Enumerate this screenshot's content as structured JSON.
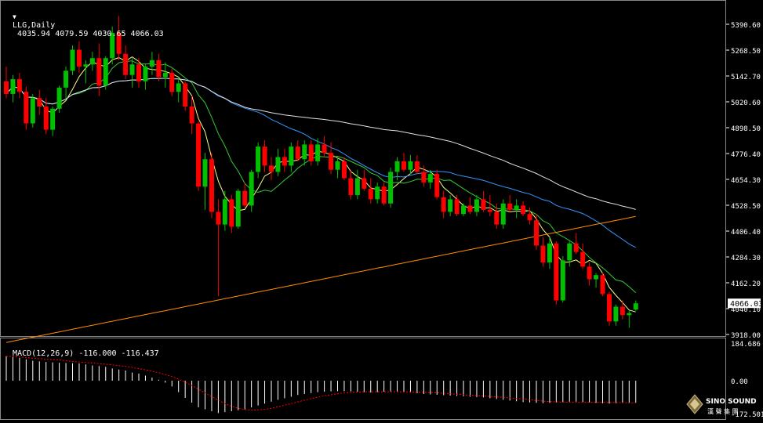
{
  "header": {
    "arrow_icon": "triangle-down-icon",
    "symbol": "LLG,Daily",
    "ohlc": "4035.94 4079.59 4030.65 4066.03"
  },
  "macd_header": {
    "label": "MACD(12,26,9) -116.000 -116.437"
  },
  "price_axis": {
    "ticks": [
      "5390.60",
      "5268.50",
      "5142.70",
      "5020.60",
      "4898.50",
      "4776.40",
      "4654.30",
      "4528.50",
      "4406.40",
      "4284.30",
      "4162.20",
      "4040.10",
      "3918.00"
    ],
    "current_price_label": "4066.03"
  },
  "macd_axis": {
    "ticks": [
      "184.686",
      "0.00",
      "-172.501"
    ]
  },
  "logo": {
    "text": "SINO SOUND",
    "subtext": "漢 聲 集 團",
    "icon": "diamond-logo-icon"
  },
  "colors": {
    "background": "#000000",
    "bull": "#00c000",
    "bear": "#ff0000",
    "grid": "#ffffff",
    "ma_yellow": "#ffff80",
    "ma_green": "#33cc33",
    "ma_blue": "#3399ff",
    "ma_white": "#e0e0e0",
    "ma_orange": "#ff8c00",
    "macd_signal": "#ff0000"
  },
  "chart_data": {
    "type": "candlestick",
    "ylim": [
      3918.0,
      5440.0
    ],
    "candles": [
      [
        5120,
        5190,
        5040,
        5060
      ],
      [
        5060,
        5150,
        5020,
        5130
      ],
      [
        5130,
        5160,
        5040,
        5070
      ],
      [
        5070,
        5095,
        4890,
        4920
      ],
      [
        4920,
        5060,
        4900,
        5040
      ],
      [
        5040,
        5080,
        4960,
        5000
      ],
      [
        5000,
        5040,
        4870,
        4890
      ],
      [
        4890,
        5000,
        4860,
        4990
      ],
      [
        4990,
        5100,
        4970,
        5090
      ],
      [
        5090,
        5190,
        5040,
        5170
      ],
      [
        5170,
        5290,
        5150,
        5270
      ],
      [
        5270,
        5310,
        5160,
        5190
      ],
      [
        5190,
        5220,
        5110,
        5200
      ],
      [
        5200,
        5260,
        5170,
        5230
      ],
      [
        5230,
        5300,
        5050,
        5100
      ],
      [
        5100,
        5240,
        5080,
        5230
      ],
      [
        5230,
        5380,
        5200,
        5350
      ],
      [
        5350,
        5430,
        5220,
        5250
      ],
      [
        5250,
        5290,
        5130,
        5150
      ],
      [
        5150,
        5230,
        5090,
        5200
      ],
      [
        5200,
        5230,
        5090,
        5120
      ],
      [
        5120,
        5200,
        5080,
        5190
      ],
      [
        5190,
        5260,
        5150,
        5220
      ],
      [
        5220,
        5250,
        5120,
        5140
      ],
      [
        5140,
        5210,
        5090,
        5160
      ],
      [
        5160,
        5180,
        5050,
        5070
      ],
      [
        5070,
        5140,
        5020,
        5110
      ],
      [
        5110,
        5120,
        4980,
        5000
      ],
      [
        5000,
        5050,
        4870,
        4920
      ],
      [
        4920,
        4930,
        4600,
        4620
      ],
      [
        4620,
        4780,
        4510,
        4750
      ],
      [
        4750,
        4780,
        4470,
        4500
      ],
      [
        4500,
        4560,
        4100,
        4440
      ],
      [
        4440,
        4600,
        4410,
        4560
      ],
      [
        4560,
        4580,
        4400,
        4430
      ],
      [
        4430,
        4610,
        4420,
        4600
      ],
      [
        4600,
        4640,
        4520,
        4530
      ],
      [
        4530,
        4700,
        4500,
        4690
      ],
      [
        4690,
        4830,
        4660,
        4810
      ],
      [
        4810,
        4840,
        4690,
        4720
      ],
      [
        4720,
        4760,
        4650,
        4690
      ],
      [
        4690,
        4800,
        4670,
        4760
      ],
      [
        4760,
        4800,
        4690,
        4720
      ],
      [
        4720,
        4830,
        4690,
        4810
      ],
      [
        4810,
        4840,
        4740,
        4750
      ],
      [
        4750,
        4840,
        4720,
        4820
      ],
      [
        4820,
        4840,
        4720,
        4740
      ],
      [
        4740,
        4850,
        4720,
        4820
      ],
      [
        4820,
        4860,
        4760,
        4780
      ],
      [
        4780,
        4830,
        4680,
        4700
      ],
      [
        4700,
        4760,
        4660,
        4740
      ],
      [
        4740,
        4760,
        4650,
        4660
      ],
      [
        4660,
        4700,
        4560,
        4580
      ],
      [
        4580,
        4700,
        4560,
        4660
      ],
      [
        4660,
        4700,
        4600,
        4610
      ],
      [
        4610,
        4660,
        4540,
        4560
      ],
      [
        4560,
        4640,
        4540,
        4620
      ],
      [
        4620,
        4640,
        4530,
        4540
      ],
      [
        4540,
        4710,
        4520,
        4690
      ],
      [
        4690,
        4760,
        4650,
        4740
      ],
      [
        4740,
        4780,
        4690,
        4700
      ],
      [
        4700,
        4770,
        4680,
        4740
      ],
      [
        4740,
        4770,
        4680,
        4690
      ],
      [
        4690,
        4720,
        4620,
        4640
      ],
      [
        4640,
        4700,
        4610,
        4680
      ],
      [
        4680,
        4700,
        4560,
        4570
      ],
      [
        4570,
        4600,
        4470,
        4500
      ],
      [
        4500,
        4580,
        4480,
        4560
      ],
      [
        4560,
        4580,
        4480,
        4490
      ],
      [
        4490,
        4540,
        4480,
        4530
      ],
      [
        4530,
        4570,
        4490,
        4500
      ],
      [
        4500,
        4580,
        4480,
        4560
      ],
      [
        4560,
        4600,
        4500,
        4510
      ],
      [
        4510,
        4580,
        4480,
        4500
      ],
      [
        4500,
        4540,
        4420,
        4440
      ],
      [
        4440,
        4560,
        4420,
        4540
      ],
      [
        4540,
        4580,
        4500,
        4510
      ],
      [
        4510,
        4560,
        4470,
        4530
      ],
      [
        4530,
        4550,
        4480,
        4490
      ],
      [
        4490,
        4520,
        4440,
        4460
      ],
      [
        4460,
        4490,
        4320,
        4340
      ],
      [
        4340,
        4380,
        4240,
        4260
      ],
      [
        4260,
        4380,
        4230,
        4350
      ],
      [
        4350,
        4360,
        4060,
        4080
      ],
      [
        4080,
        4290,
        4070,
        4270
      ],
      [
        4270,
        4360,
        4240,
        4350
      ],
      [
        4350,
        4400,
        4300,
        4310
      ],
      [
        4310,
        4350,
        4230,
        4240
      ],
      [
        4240,
        4260,
        4150,
        4180
      ],
      [
        4180,
        4210,
        4140,
        4200
      ],
      [
        4200,
        4210,
        4100,
        4110
      ],
      [
        4110,
        4120,
        3960,
        3980
      ],
      [
        3980,
        4060,
        3960,
        4050
      ],
      [
        4050,
        4080,
        3990,
        4010
      ],
      [
        4010,
        4030,
        3950,
        4020
      ],
      [
        4035.94,
        4079.59,
        4030.65,
        4066.03
      ]
    ],
    "macd_histogram": [
      120,
      118,
      112,
      105,
      98,
      95,
      92,
      90,
      88,
      87,
      86,
      85,
      80,
      75,
      72,
      68,
      60,
      55,
      50,
      40,
      35,
      25,
      15,
      5,
      -10,
      -30,
      -60,
      -90,
      -115,
      -140,
      -150,
      -160,
      -170,
      -165,
      -160,
      -155,
      -150,
      -140,
      -130,
      -120,
      -110,
      -100,
      -92,
      -84,
      -75,
      -70,
      -65,
      -60,
      -58,
      -56,
      -55,
      -55,
      -56,
      -58,
      -60,
      -62,
      -60,
      -58,
      -56,
      -56,
      -58,
      -62,
      -66,
      -70,
      -72,
      -74,
      -76,
      -78,
      -80,
      -82,
      -84,
      -86,
      -88,
      -92,
      -96,
      -100,
      -104,
      -108,
      -112,
      -114,
      -116,
      -118,
      -116,
      -114,
      -112,
      -110,
      -110,
      -112,
      -114,
      -116,
      -118,
      -120,
      -118,
      -117,
      -116.5,
      -116
    ]
  }
}
